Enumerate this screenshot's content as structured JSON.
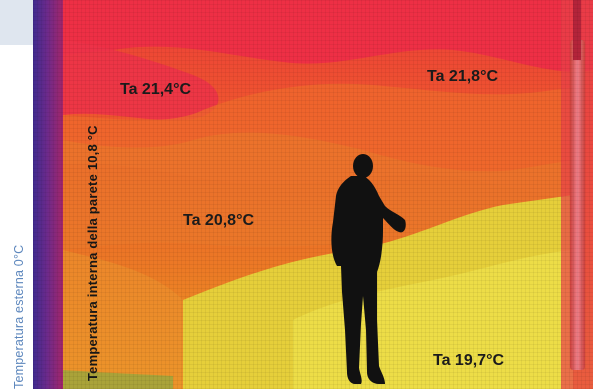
{
  "labels": {
    "outside_temperature": "Temperatura esterna 0°C",
    "wall_internal_temperature": "Temperatura interna della parete 10,8 °C"
  },
  "readings": {
    "upper_left": "Ta 21,4°C",
    "upper_right": "Ta 21,8°C",
    "middle": "Ta 20,8°C",
    "lower_right": "Ta 19,7°C"
  },
  "colors": {
    "outside_label": "#5d87bd",
    "corner_panel": "#dfe6ef",
    "wall_purple": "#5a2c8c",
    "hot_red": "#ee2f45",
    "warm_orange": "#ef6a2c",
    "cool_yellow": "#e6cf3a"
  }
}
